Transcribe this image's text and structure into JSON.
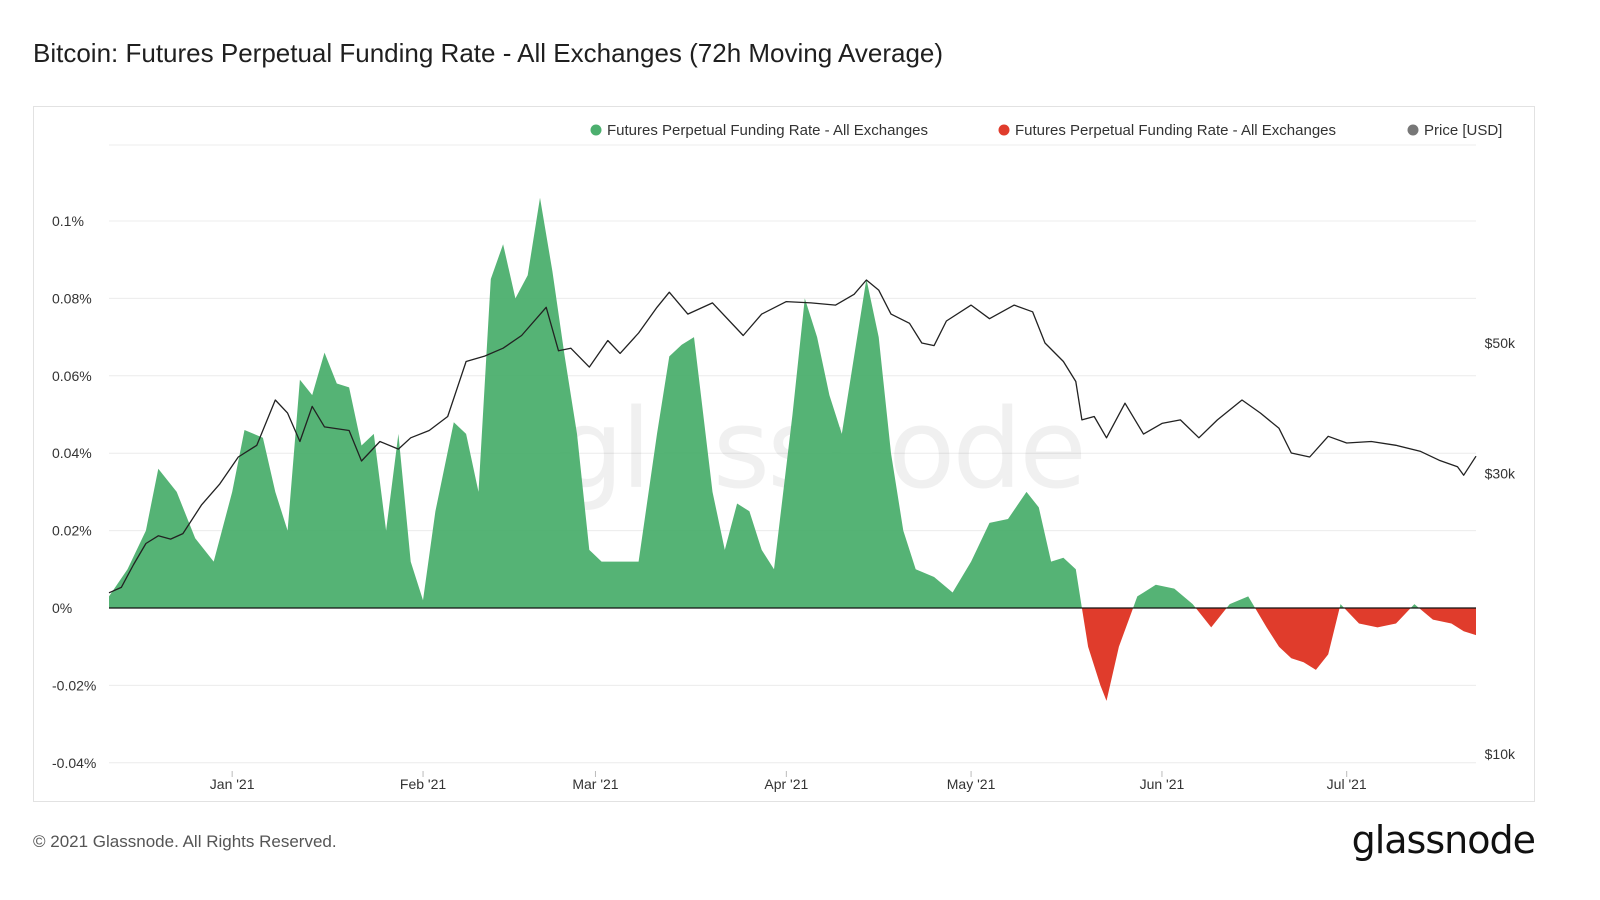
{
  "page": {
    "title": "Bitcoin: Futures Perpetual Funding Rate - All Exchanges (72h Moving Average)",
    "footer": "© 2021 Glassnode. All Rights Reserved.",
    "brand": "glassnode",
    "watermark": "glassnode"
  },
  "chart_data": {
    "type": "area",
    "title": "Bitcoin: Futures Perpetual Funding Rate - All Exchanges (72h Moving Average)",
    "legend": [
      {
        "label": "Futures Perpetual Funding Rate - All Exchanges",
        "color": "#4caf6e"
      },
      {
        "label": "Futures Perpetual Funding Rate - All Exchanges",
        "color": "#e03c2c"
      },
      {
        "label": "Price [USD]",
        "color": "#777777"
      }
    ],
    "legend_position": "top-right",
    "grid": true,
    "x_ticks": [
      "Jan '21",
      "Feb '21",
      "Mar '21",
      "Apr '21",
      "May '21",
      "Jun '21",
      "Jul '21"
    ],
    "x_tick_dates": [
      "2021-01-01",
      "2021-02-01",
      "2021-03-01",
      "2021-04-01",
      "2021-05-01",
      "2021-06-01",
      "2021-07-01"
    ],
    "x_range": [
      "2020-12-12",
      "2021-07-22"
    ],
    "y_left": {
      "ticks": [
        "0.1%",
        "0.08%",
        "0.06%",
        "0.04%",
        "0.02%",
        "0%",
        "-0.02%",
        "-0.04%"
      ],
      "tick_values": [
        0.1,
        0.08,
        0.06,
        0.04,
        0.02,
        0,
        -0.02,
        -0.04
      ],
      "range": [
        -0.04,
        0.12
      ]
    },
    "y_right": {
      "ticks": [
        "$50k",
        "$30k",
        "$10k"
      ],
      "tick_values": [
        50000,
        30000,
        10000
      ],
      "scale": "log"
    },
    "colors": {
      "positive": "#4caf6e",
      "negative": "#e03c2c",
      "price": "#222222",
      "zero_line": "#111111"
    },
    "funding_rate": [
      [
        "2020-12-12",
        0.003
      ],
      [
        "2020-12-15",
        0.01
      ],
      [
        "2020-12-18",
        0.02
      ],
      [
        "2020-12-20",
        0.036
      ],
      [
        "2020-12-23",
        0.03
      ],
      [
        "2020-12-26",
        0.018
      ],
      [
        "2020-12-29",
        0.012
      ],
      [
        "2021-01-01",
        0.03
      ],
      [
        "2021-01-03",
        0.046
      ],
      [
        "2021-01-06",
        0.044
      ],
      [
        "2021-01-08",
        0.03
      ],
      [
        "2021-01-10",
        0.02
      ],
      [
        "2021-01-12",
        0.059
      ],
      [
        "2021-01-14",
        0.055
      ],
      [
        "2021-01-16",
        0.066
      ],
      [
        "2021-01-18",
        0.058
      ],
      [
        "2021-01-20",
        0.057
      ],
      [
        "2021-01-22",
        0.042
      ],
      [
        "2021-01-24",
        0.045
      ],
      [
        "2021-01-26",
        0.02
      ],
      [
        "2021-01-28",
        0.045
      ],
      [
        "2021-01-30",
        0.012
      ],
      [
        "2021-02-01",
        0.002
      ],
      [
        "2021-02-03",
        0.025
      ],
      [
        "2021-02-06",
        0.048
      ],
      [
        "2021-02-08",
        0.045
      ],
      [
        "2021-02-10",
        0.03
      ],
      [
        "2021-02-12",
        0.085
      ],
      [
        "2021-02-14",
        0.094
      ],
      [
        "2021-02-16",
        0.08
      ],
      [
        "2021-02-18",
        0.086
      ],
      [
        "2021-02-20",
        0.106
      ],
      [
        "2021-02-22",
        0.087
      ],
      [
        "2021-02-24",
        0.065
      ],
      [
        "2021-02-26",
        0.045
      ],
      [
        "2021-02-28",
        0.015
      ],
      [
        "2021-03-02",
        0.012
      ],
      [
        "2021-03-05",
        0.012
      ],
      [
        "2021-03-08",
        0.012
      ],
      [
        "2021-03-11",
        0.045
      ],
      [
        "2021-03-13",
        0.065
      ],
      [
        "2021-03-15",
        0.068
      ],
      [
        "2021-03-17",
        0.07
      ],
      [
        "2021-03-20",
        0.03
      ],
      [
        "2021-03-22",
        0.015
      ],
      [
        "2021-03-24",
        0.027
      ],
      [
        "2021-03-26",
        0.025
      ],
      [
        "2021-03-28",
        0.015
      ],
      [
        "2021-03-30",
        0.01
      ],
      [
        "2021-04-02",
        0.05
      ],
      [
        "2021-04-04",
        0.08
      ],
      [
        "2021-04-06",
        0.07
      ],
      [
        "2021-04-08",
        0.055
      ],
      [
        "2021-04-10",
        0.045
      ],
      [
        "2021-04-12",
        0.065
      ],
      [
        "2021-04-14",
        0.085
      ],
      [
        "2021-04-16",
        0.07
      ],
      [
        "2021-04-18",
        0.04
      ],
      [
        "2021-04-20",
        0.02
      ],
      [
        "2021-04-22",
        0.01
      ],
      [
        "2021-04-25",
        0.008
      ],
      [
        "2021-04-28",
        0.004
      ],
      [
        "2021-05-01",
        0.012
      ],
      [
        "2021-05-04",
        0.022
      ],
      [
        "2021-05-07",
        0.023
      ],
      [
        "2021-05-10",
        0.03
      ],
      [
        "2021-05-12",
        0.026
      ],
      [
        "2021-05-14",
        0.012
      ],
      [
        "2021-05-16",
        0.013
      ],
      [
        "2021-05-18",
        0.01
      ],
      [
        "2021-05-20",
        -0.01
      ],
      [
        "2021-05-22",
        -0.02
      ],
      [
        "2021-05-23",
        -0.024
      ],
      [
        "2021-05-25",
        -0.01
      ],
      [
        "2021-05-28",
        0.003
      ],
      [
        "2021-05-31",
        0.006
      ],
      [
        "2021-06-03",
        0.005
      ],
      [
        "2021-06-06",
        0.001
      ],
      [
        "2021-06-09",
        -0.005
      ],
      [
        "2021-06-12",
        0.001
      ],
      [
        "2021-06-15",
        0.003
      ],
      [
        "2021-06-18",
        -0.005
      ],
      [
        "2021-06-20",
        -0.01
      ],
      [
        "2021-06-22",
        -0.013
      ],
      [
        "2021-06-24",
        -0.014
      ],
      [
        "2021-06-26",
        -0.016
      ],
      [
        "2021-06-28",
        -0.012
      ],
      [
        "2021-06-30",
        0.001
      ],
      [
        "2021-07-03",
        -0.004
      ],
      [
        "2021-07-06",
        -0.005
      ],
      [
        "2021-07-09",
        -0.004
      ],
      [
        "2021-07-12",
        0.001
      ],
      [
        "2021-07-15",
        -0.003
      ],
      [
        "2021-07-18",
        -0.004
      ],
      [
        "2021-07-20",
        -0.006
      ],
      [
        "2021-07-22",
        -0.007
      ]
    ],
    "price_usd": [
      [
        "2020-12-12",
        18800
      ],
      [
        "2020-12-14",
        19200
      ],
      [
        "2020-12-16",
        21000
      ],
      [
        "2020-12-18",
        22800
      ],
      [
        "2020-12-20",
        23500
      ],
      [
        "2020-12-22",
        23200
      ],
      [
        "2020-12-24",
        23700
      ],
      [
        "2020-12-27",
        26500
      ],
      [
        "2020-12-30",
        28800
      ],
      [
        "2021-01-02",
        32000
      ],
      [
        "2021-01-05",
        33500
      ],
      [
        "2021-01-08",
        40000
      ],
      [
        "2021-01-10",
        38000
      ],
      [
        "2021-01-12",
        34000
      ],
      [
        "2021-01-14",
        39000
      ],
      [
        "2021-01-16",
        36000
      ],
      [
        "2021-01-20",
        35500
      ],
      [
        "2021-01-22",
        31500
      ],
      [
        "2021-01-25",
        34000
      ],
      [
        "2021-01-28",
        33000
      ],
      [
        "2021-01-30",
        34500
      ],
      [
        "2021-02-02",
        35500
      ],
      [
        "2021-02-05",
        37500
      ],
      [
        "2021-02-08",
        46500
      ],
      [
        "2021-02-11",
        47500
      ],
      [
        "2021-02-14",
        49000
      ],
      [
        "2021-02-17",
        51500
      ],
      [
        "2021-02-21",
        57500
      ],
      [
        "2021-02-23",
        48500
      ],
      [
        "2021-02-25",
        49000
      ],
      [
        "2021-02-28",
        45500
      ],
      [
        "2021-03-03",
        50500
      ],
      [
        "2021-03-05",
        48000
      ],
      [
        "2021-03-08",
        52000
      ],
      [
        "2021-03-11",
        57500
      ],
      [
        "2021-03-13",
        61000
      ],
      [
        "2021-03-16",
        56000
      ],
      [
        "2021-03-20",
        58500
      ],
      [
        "2021-03-25",
        51500
      ],
      [
        "2021-03-28",
        56000
      ],
      [
        "2021-04-01",
        58800
      ],
      [
        "2021-04-05",
        58500
      ],
      [
        "2021-04-09",
        58000
      ],
      [
        "2021-04-12",
        60500
      ],
      [
        "2021-04-14",
        64000
      ],
      [
        "2021-04-16",
        61500
      ],
      [
        "2021-04-18",
        56000
      ],
      [
        "2021-04-21",
        54000
      ],
      [
        "2021-04-23",
        50000
      ],
      [
        "2021-04-25",
        49500
      ],
      [
        "2021-04-27",
        54500
      ],
      [
        "2021-05-01",
        58000
      ],
      [
        "2021-05-04",
        55000
      ],
      [
        "2021-05-08",
        58000
      ],
      [
        "2021-05-11",
        56500
      ],
      [
        "2021-05-13",
        50000
      ],
      [
        "2021-05-16",
        46500
      ],
      [
        "2021-05-18",
        43000
      ],
      [
        "2021-05-19",
        37000
      ],
      [
        "2021-05-21",
        37500
      ],
      [
        "2021-05-23",
        34500
      ],
      [
        "2021-05-26",
        39500
      ],
      [
        "2021-05-29",
        35000
      ],
      [
        "2021-06-01",
        36500
      ],
      [
        "2021-06-04",
        37000
      ],
      [
        "2021-06-07",
        34500
      ],
      [
        "2021-06-10",
        37000
      ],
      [
        "2021-06-14",
        40000
      ],
      [
        "2021-06-17",
        38000
      ],
      [
        "2021-06-20",
        35800
      ],
      [
        "2021-06-22",
        32500
      ],
      [
        "2021-06-25",
        32000
      ],
      [
        "2021-06-28",
        34700
      ],
      [
        "2021-07-01",
        33800
      ],
      [
        "2021-07-05",
        34000
      ],
      [
        "2021-07-09",
        33500
      ],
      [
        "2021-07-13",
        32700
      ],
      [
        "2021-07-16",
        31600
      ],
      [
        "2021-07-19",
        30800
      ],
      [
        "2021-07-20",
        29800
      ],
      [
        "2021-07-22",
        32100
      ]
    ]
  }
}
